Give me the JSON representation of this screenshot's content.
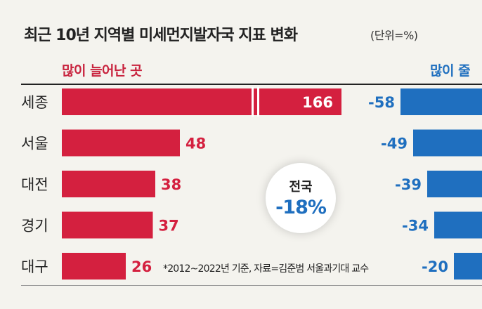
{
  "title": "최근 10년 지역별 미세먼지발자국 지표 변화",
  "unit": "(단위=%)",
  "groups": {
    "increase_label": "많이 늘어난 곳",
    "decrease_label": "많이 줄"
  },
  "national": {
    "label": "전국",
    "value": "-18%"
  },
  "note": "*2012~2022년 기준, 자료=김준범 서울과기대 교수",
  "colors": {
    "increase": "#d4203f",
    "decrease": "#1f6fbf",
    "background": "#f4f3ee"
  },
  "chart_data": {
    "type": "bar",
    "orientation": "horizontal",
    "categories": [
      "세종",
      "서울",
      "대전",
      "경기",
      "대구"
    ],
    "series": [
      {
        "name": "많이 늘어난 곳",
        "values": [
          166,
          48,
          38,
          37,
          26
        ],
        "value_labels": [
          "166",
          "48",
          "38",
          "37",
          "26"
        ],
        "axis_break": [
          false,
          false,
          false,
          false,
          false
        ]
      },
      {
        "name": "많이 줄",
        "values": [
          -58,
          -49,
          -39,
          -34,
          -20
        ],
        "value_labels": [
          "-58",
          "-49",
          "-39",
          "-34",
          "-20"
        ]
      }
    ],
    "axis_break_on_first_bar": true
  }
}
